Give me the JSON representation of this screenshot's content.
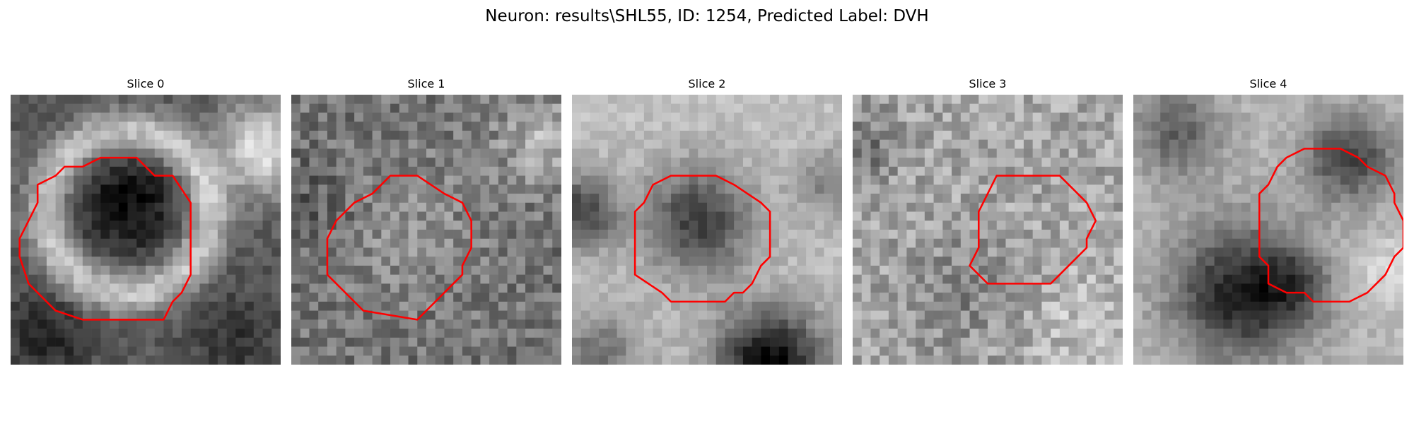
{
  "figure": {
    "title": "Neuron: results\\SHL55, ID: 1254, Predicted Label: DVH"
  },
  "panels": [
    {
      "title": "Slice 0",
      "contour_color": "#ff0000"
    },
    {
      "title": "Slice 1",
      "contour_color": "#ff0000"
    },
    {
      "title": "Slice 2",
      "contour_color": "#ff0000"
    },
    {
      "title": "Slice 3",
      "contour_color": "#ff0000"
    },
    {
      "title": "Slice 4",
      "contour_color": "#ff0000"
    }
  ],
  "colormap": "gray"
}
